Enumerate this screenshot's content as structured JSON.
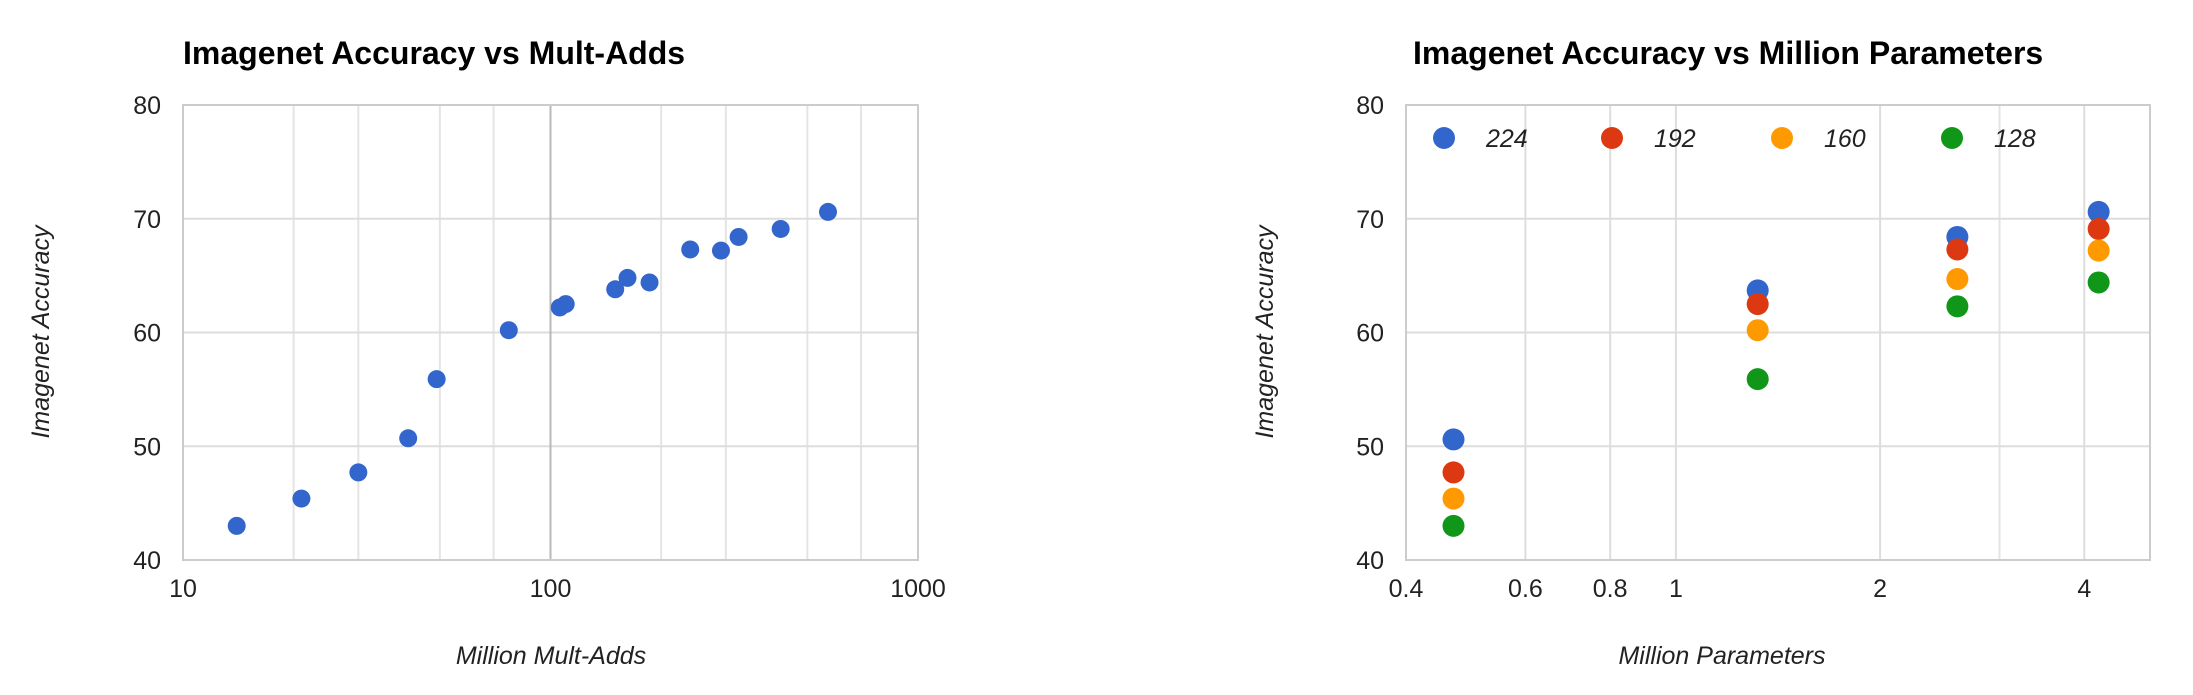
{
  "chart_data": [
    {
      "type": "scatter",
      "title": "Imagenet Accuracy vs Mult-Adds",
      "xlabel": "Million Mult-Adds",
      "ylabel": "Imagenet Accuracy",
      "x_scale": "log",
      "xlim": [
        10,
        1000
      ],
      "ylim": [
        40,
        80
      ],
      "x_ticks": [
        "10",
        "100",
        "1000"
      ],
      "y_ticks": [
        "40",
        "50",
        "60",
        "70",
        "80"
      ],
      "grid": true,
      "series": [
        {
          "color": "#3366cc",
          "points": [
            {
              "x": 14,
              "y": 43.0
            },
            {
              "x": 21,
              "y": 45.4
            },
            {
              "x": 30,
              "y": 47.7
            },
            {
              "x": 41,
              "y": 50.7
            },
            {
              "x": 49,
              "y": 55.9
            },
            {
              "x": 77,
              "y": 60.2
            },
            {
              "x": 106,
              "y": 62.2
            },
            {
              "x": 110,
              "y": 62.5
            },
            {
              "x": 150,
              "y": 63.8
            },
            {
              "x": 162,
              "y": 64.8
            },
            {
              "x": 186,
              "y": 64.4
            },
            {
              "x": 240,
              "y": 67.3
            },
            {
              "x": 291,
              "y": 67.2
            },
            {
              "x": 325,
              "y": 68.4
            },
            {
              "x": 423,
              "y": 69.1
            },
            {
              "x": 569,
              "y": 70.6
            }
          ]
        }
      ]
    },
    {
      "type": "scatter",
      "title": "Imagenet Accuracy vs Million Parameters",
      "xlabel": "Million Parameters",
      "ylabel": "Imagenet Accuracy",
      "x_scale": "log",
      "xlim": [
        0.4,
        5
      ],
      "ylim": [
        40,
        80
      ],
      "x_ticks": [
        "0.4",
        "0.6",
        "0.8",
        "1",
        "2",
        "4"
      ],
      "y_ticks": [
        "40",
        "50",
        "60",
        "70",
        "80"
      ],
      "grid": true,
      "legend_position": "top",
      "series": [
        {
          "name": "224",
          "color": "#3366cc",
          "points": [
            {
              "x": 0.47,
              "y": 50.6
            },
            {
              "x": 1.32,
              "y": 63.7
            },
            {
              "x": 2.6,
              "y": 68.4
            },
            {
              "x": 4.2,
              "y": 70.6
            }
          ]
        },
        {
          "name": "192",
          "color": "#dc3912",
          "points": [
            {
              "x": 0.47,
              "y": 47.7
            },
            {
              "x": 1.32,
              "y": 62.5
            },
            {
              "x": 2.6,
              "y": 67.3
            },
            {
              "x": 4.2,
              "y": 69.1
            }
          ]
        },
        {
          "name": "160",
          "color": "#ff9900",
          "points": [
            {
              "x": 0.47,
              "y": 45.4
            },
            {
              "x": 1.32,
              "y": 60.2
            },
            {
              "x": 2.6,
              "y": 64.7
            },
            {
              "x": 4.2,
              "y": 67.2
            }
          ]
        },
        {
          "name": "128",
          "color": "#109618",
          "points": [
            {
              "x": 0.47,
              "y": 43.0
            },
            {
              "x": 1.32,
              "y": 55.9
            },
            {
              "x": 2.6,
              "y": 62.3
            },
            {
              "x": 4.2,
              "y": 64.4
            }
          ]
        }
      ]
    }
  ]
}
